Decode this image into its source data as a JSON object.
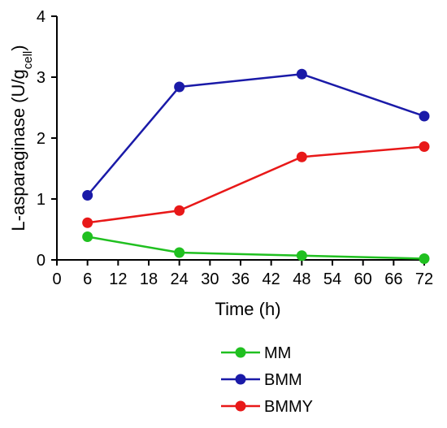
{
  "chart_data": {
    "type": "line",
    "xlabel": "Time (h)",
    "ylabel": {
      "base": "L-asparaginase (U/g",
      "subscript": "cell",
      "suffix": ")"
    },
    "xlim": [
      0,
      72
    ],
    "ylim": [
      0,
      4
    ],
    "xticks": [
      0,
      6,
      12,
      18,
      24,
      30,
      36,
      42,
      48,
      54,
      60,
      66,
      72
    ],
    "yticks": [
      0,
      1,
      2,
      3,
      4
    ],
    "grid": false,
    "legend": "bottom",
    "series": [
      {
        "name": "MM",
        "color": "#20c020",
        "points": [
          {
            "x": 6,
            "y": 0.38
          },
          {
            "x": 24,
            "y": 0.12
          },
          {
            "x": 48,
            "y": 0.07
          },
          {
            "x": 72,
            "y": 0.02
          }
        ]
      },
      {
        "name": "BMM",
        "color": "#1a1aa8",
        "points": [
          {
            "x": 6,
            "y": 1.06
          },
          {
            "x": 24,
            "y": 2.84
          },
          {
            "x": 48,
            "y": 3.05
          },
          {
            "x": 72,
            "y": 2.36
          }
        ]
      },
      {
        "name": "BMMY",
        "color": "#e81818",
        "points": [
          {
            "x": 6,
            "y": 0.61
          },
          {
            "x": 24,
            "y": 0.81
          },
          {
            "x": 48,
            "y": 1.69
          },
          {
            "x": 72,
            "y": 1.86
          }
        ]
      }
    ]
  }
}
